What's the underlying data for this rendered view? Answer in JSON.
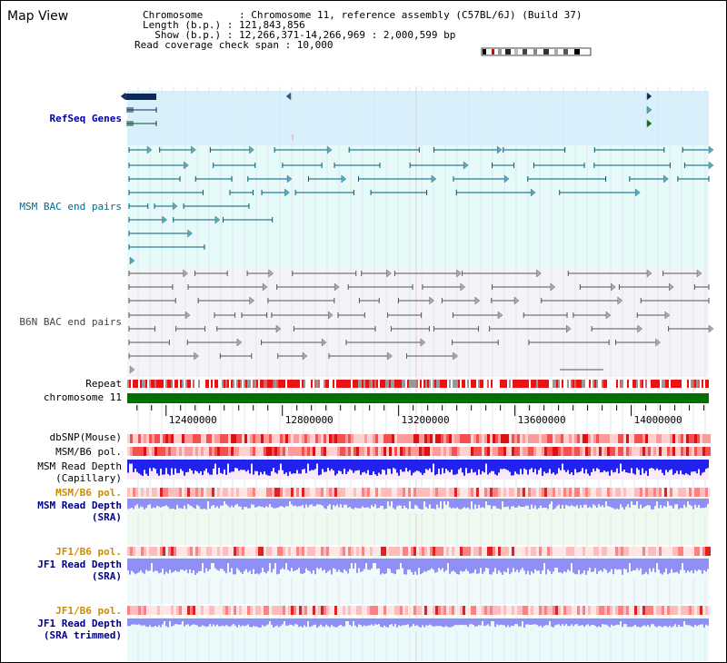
{
  "app": {
    "title": "Map View"
  },
  "info": {
    "chromosome_line": "Chromosome      : Chromosome 11, reference assembly (C57BL/6J) (Build 37)",
    "length_line": "Length (b.p.) : 121,843,856",
    "show_line": "  Show (b.p.) : 12,266,371-14,266,969 : 2,000,599 bp",
    "coverage_line": "Read coverage check span : 10,000"
  },
  "tracks": {
    "refseq": "RefSeq Genes",
    "msm_bac": "MSM BAC end pairs",
    "b6n_bac": "B6N BAC end pairs",
    "repeat": "Repeat",
    "chromosome": "chromosome 11",
    "dbsnp": "dbSNP(Mouse)",
    "msm_b6_pol": "MSM/B6 pol.",
    "msm_read_depth_cap_1": "MSM Read Depth",
    "msm_read_depth_cap_2": "(Capillary)",
    "msm_b6_pol_2": "MSM/B6 pol.",
    "msm_read_depth_sra_1": "MSM Read Depth",
    "msm_read_depth_sra_2": "(SRA)",
    "jf1_b6_pol": "JF1/B6 pol.",
    "jf1_read_depth_sra_1": "JF1 Read Depth",
    "jf1_read_depth_sra_2": "(SRA)",
    "jf1_b6_pol_2": "JF1/B6 pol.",
    "jf1_read_depth_trim_1": "JF1 Read Depth",
    "jf1_read_depth_trim_2": "(SRA trimmed)"
  },
  "axis": {
    "ticks": [
      "12400000",
      "12800000",
      "13200000",
      "13600000",
      "14000000"
    ],
    "range_bp": [
      12266371,
      14266969
    ]
  },
  "colors": {
    "refseq_bg": "#d8f0fb",
    "msm_bg": "#e6fafa",
    "b6n_bg": "#f4f4f8",
    "chromosome_bar": "#007000",
    "depth_blue": "#2222ee",
    "depth_light": "#8f8ff5",
    "pol_red": "#ee3333",
    "msm_line": "#005c7a",
    "b6n_line": "#555555"
  }
}
